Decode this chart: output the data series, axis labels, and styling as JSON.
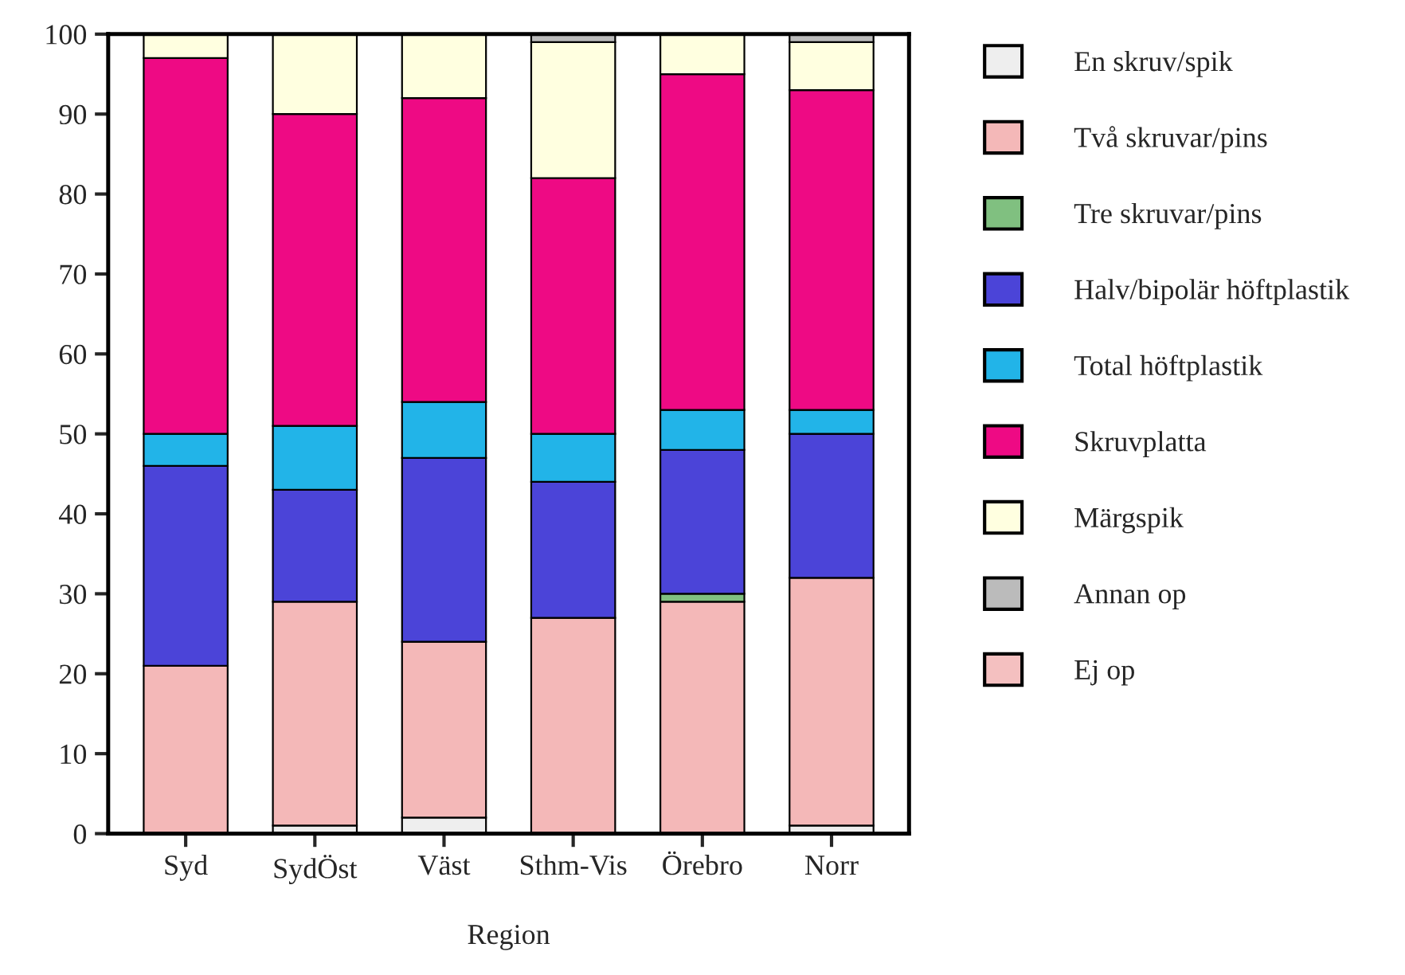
{
  "chart_data": {
    "type": "bar",
    "stacked": true,
    "xlabel": "Region",
    "categories": [
      "Syd",
      "SydÖst",
      "Väst",
      "Sthm-Vis",
      "Örebro",
      "Norr"
    ],
    "series": [
      {
        "name": "En skruv/spik",
        "color": "#eeeeee",
        "values": [
          0,
          1,
          2,
          0,
          0,
          1
        ]
      },
      {
        "name": "Två skruvar/pins",
        "color": "#f4b8b8",
        "values": [
          21,
          28,
          22,
          27,
          29,
          31
        ]
      },
      {
        "name": "Tre skruvar/pins",
        "color": "#80c080",
        "values": [
          0,
          0,
          0,
          0,
          1,
          0
        ]
      },
      {
        "name": "Halv/bipolär höftplastik",
        "color": "#4b44d8",
        "values": [
          25,
          14,
          23,
          17,
          18,
          18
        ]
      },
      {
        "name": "Total höftplastik",
        "color": "#22b4e8",
        "values": [
          4,
          8,
          7,
          6,
          5,
          3
        ]
      },
      {
        "name": "Skruvplatta",
        "color": "#ee0a84",
        "values": [
          47,
          39,
          38,
          32,
          42,
          40
        ]
      },
      {
        "name": "Märgspik",
        "color": "#ffffe0",
        "values": [
          3,
          10,
          8,
          17,
          5,
          6
        ]
      },
      {
        "name": "Annan op",
        "color": "#bbbbbb",
        "values": [
          0,
          0,
          0,
          1,
          0,
          1
        ]
      },
      {
        "name": "Ej op",
        "color": "#f4c0c0",
        "values": [
          0,
          0,
          0,
          0,
          0,
          0
        ]
      }
    ],
    "ylim": [
      0,
      100
    ],
    "yticks": [
      0,
      10,
      20,
      30,
      40,
      50,
      60,
      70,
      80,
      90,
      100
    ],
    "grid": false,
    "legend": "right"
  }
}
